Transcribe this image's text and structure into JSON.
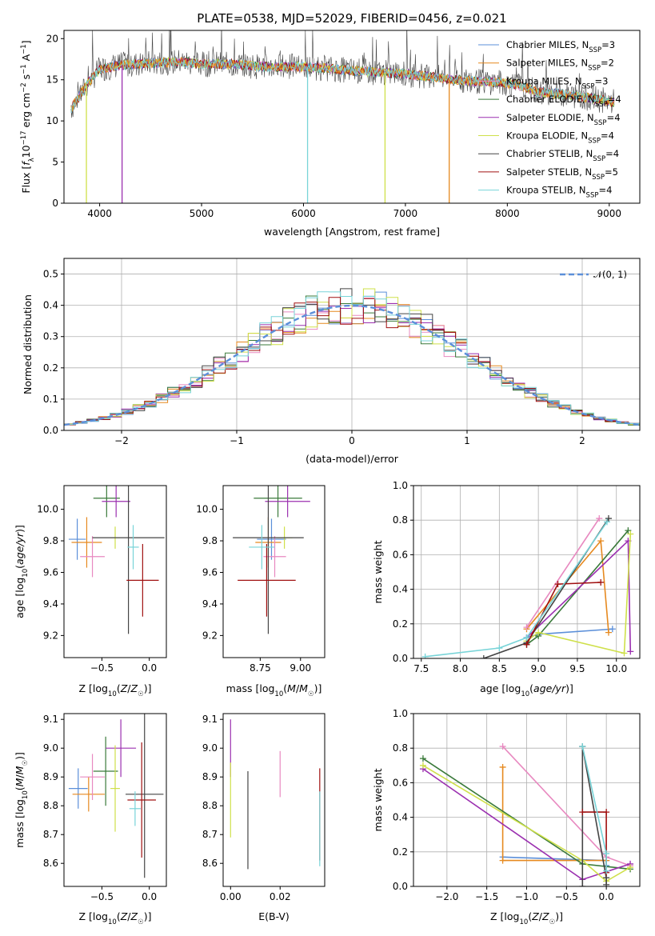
{
  "chart_data": [
    {
      "id": "spectrum",
      "type": "line",
      "title": "PLATE=0538, MJD=52029, FIBERID=0456, z=0.021",
      "xlabel": "wavelength [Angstrom, rest frame]",
      "ylabel": "Flux [f_λ 10^-17 erg cm^-2 s^-1 A^-1]",
      "xlim": [
        3650,
        9300
      ],
      "ylim": [
        0,
        21
      ],
      "xticks": [
        4000,
        5000,
        6000,
        7000,
        8000,
        9000
      ],
      "yticks": [
        0,
        5,
        10,
        15,
        20
      ],
      "grid": false,
      "legend_position": "top-right",
      "continuum": {
        "x": [
          3720,
          3800,
          3900,
          4000,
          4200,
          4500,
          4800,
          5000,
          5300,
          5600,
          6000,
          6300,
          6600,
          7000,
          7300,
          7500,
          7700,
          7900,
          8100,
          8300,
          8500,
          8700,
          8900,
          9050
        ],
        "y": [
          11.5,
          13,
          14.8,
          16.3,
          16.8,
          17.0,
          17.2,
          16.9,
          16.9,
          16.6,
          16.6,
          16.3,
          16.0,
          15.7,
          15.3,
          15.0,
          14.8,
          14.7,
          14.4,
          13.5,
          13.3,
          13.0,
          12.6,
          12.3
        ]
      },
      "dropouts": [
        {
          "x": 3870,
          "y": 0,
          "series": "Kroupa ELODIE"
        },
        {
          "x": 4220,
          "y": 0,
          "series": "Salpeter ELODIE"
        },
        {
          "x": 6040,
          "y": 0,
          "series": "Kroupa STELIB"
        },
        {
          "x": 6800,
          "y": 0,
          "series": "Kroupa ELODIE"
        },
        {
          "x": 7430,
          "y": 0,
          "series": "Salpeter MILES"
        }
      ],
      "series": [
        {
          "name": "Chabrier MILES",
          "nssp": "3",
          "color": "#5b8fd9"
        },
        {
          "name": "Salpeter MILES",
          "nssp": "2",
          "color": "#e6891f"
        },
        {
          "name": "Kroupa MILES",
          "nssp": "3",
          "color": "#e889c0"
        },
        {
          "name": "Chabrier ELODIE",
          "nssp": "4",
          "color": "#3a7a3a"
        },
        {
          "name": "Salpeter ELODIE",
          "nssp": "4",
          "color": "#9b30b0"
        },
        {
          "name": "Kroupa ELODIE",
          "nssp": "4",
          "color": "#cfe04a"
        },
        {
          "name": "Chabrier STELIB",
          "nssp": "4",
          "color": "#444444"
        },
        {
          "name": "Salpeter STELIB",
          "nssp": "5",
          "color": "#a01010"
        },
        {
          "name": "Kroupa STELIB",
          "nssp": "4",
          "color": "#78d4d8"
        }
      ]
    },
    {
      "id": "residuals",
      "type": "line",
      "xlabel": "(data-model)/error",
      "ylabel": "Normed distribution",
      "xlim": [
        -2.5,
        2.5
      ],
      "ylim": [
        0,
        0.55
      ],
      "xticks": [
        -2,
        -1,
        0,
        1,
        2
      ],
      "yticks": [
        0.0,
        0.1,
        0.2,
        0.3,
        0.4,
        0.5
      ],
      "grid": true,
      "legend": "𝒩(0, 1)",
      "legend_position": "top-right",
      "reference_curve": "gaussian mean 0 sigma 1",
      "bin_width": 0.1
    },
    {
      "id": "age-vs-Z",
      "type": "scatter",
      "xlabel": "Z [log10(Z/Z☉)]",
      "ylabel": "age  [log10(age/yr)]",
      "xlim": [
        -0.9,
        0.18
      ],
      "ylim": [
        9.06,
        10.15
      ],
      "xticks": [
        -0.5,
        0.0
      ],
      "yticks": [
        9.2,
        9.4,
        9.6,
        9.8,
        10.0
      ],
      "grid": false,
      "points": [
        {
          "series": "Chabrier MILES",
          "x": -0.76,
          "y": 9.81,
          "xerr": 0.09,
          "yerr": 0.13
        },
        {
          "series": "Salpeter MILES",
          "x": -0.66,
          "y": 9.79,
          "xerr": 0.16,
          "yerr": 0.16
        },
        {
          "series": "Kroupa MILES",
          "x": -0.6,
          "y": 9.7,
          "xerr": 0.13,
          "yerr": 0.13
        },
        {
          "series": "Chabrier ELODIE",
          "x": -0.45,
          "y": 10.07,
          "xerr": 0.14,
          "yerr": 0.12
        },
        {
          "series": "Salpeter ELODIE",
          "x": -0.35,
          "y": 10.05,
          "xerr": 0.15,
          "yerr": 0.1
        },
        {
          "series": "Kroupa ELODIE",
          "x": -0.36,
          "y": 9.82,
          "xerr": 0.05,
          "yerr": 0.07
        },
        {
          "series": "Chabrier STELIB",
          "x": -0.22,
          "y": 9.82,
          "xerr": 0.38,
          "yerr": 0.61
        },
        {
          "series": "Salpeter STELIB",
          "x": -0.07,
          "y": 9.55,
          "xerr": 0.17,
          "yerr": 0.23
        },
        {
          "series": "Kroupa STELIB",
          "x": -0.17,
          "y": 9.76,
          "xerr": 0.06,
          "yerr": 0.14
        }
      ]
    },
    {
      "id": "age-vs-mass",
      "type": "scatter",
      "xlabel": "mass [log10(M/M☉)]",
      "ylabel": "",
      "xlim": [
        8.52,
        9.15
      ],
      "ylim": [
        9.06,
        10.15
      ],
      "xticks": [
        8.75,
        9.0
      ],
      "yticks": [
        9.2,
        9.4,
        9.6,
        9.8,
        10.0
      ],
      "grid": false,
      "points": [
        {
          "series": "Chabrier MILES",
          "x": 8.82,
          "y": 9.81,
          "xerr": 0.09,
          "yerr": 0.13
        },
        {
          "series": "Salpeter MILES",
          "x": 8.8,
          "y": 9.79,
          "xerr": 0.08,
          "yerr": 0.16
        },
        {
          "series": "Kroupa MILES",
          "x": 8.84,
          "y": 9.7,
          "xerr": 0.07,
          "yerr": 0.13
        },
        {
          "series": "Chabrier ELODIE",
          "x": 8.86,
          "y": 10.07,
          "xerr": 0.15,
          "yerr": 0.12
        },
        {
          "series": "Salpeter ELODIE",
          "x": 8.92,
          "y": 10.05,
          "xerr": 0.14,
          "yerr": 0.1
        },
        {
          "series": "Kroupa ELODIE",
          "x": 8.9,
          "y": 9.82,
          "xerr": 0.05,
          "yerr": 0.07
        },
        {
          "series": "Chabrier STELIB",
          "x": 8.8,
          "y": 9.82,
          "xerr": 0.22,
          "yerr": 0.61
        },
        {
          "series": "Salpeter STELIB",
          "x": 8.79,
          "y": 9.55,
          "xerr": 0.18,
          "yerr": 0.23
        },
        {
          "series": "Kroupa STELIB",
          "x": 8.76,
          "y": 9.76,
          "xerr": 0.08,
          "yerr": 0.14
        }
      ]
    },
    {
      "id": "weight-vs-age",
      "type": "line",
      "xlabel": "age  [log10(age/yr)]",
      "ylabel": "mass weight",
      "xlim": [
        7.4,
        10.3
      ],
      "ylim": [
        0,
        1
      ],
      "xticks": [
        7.5,
        8.0,
        8.5,
        9.0,
        9.5,
        10.0
      ],
      "yticks": [
        0.0,
        0.2,
        0.4,
        0.6,
        0.8,
        1.0
      ],
      "grid": true,
      "series": [
        {
          "name": "Chabrier MILES",
          "x": [
            8.85,
            9.0,
            9.95
          ],
          "y": [
            0.12,
            0.14,
            0.17
          ]
        },
        {
          "name": "Salpeter MILES",
          "x": [
            8.85,
            9.8,
            9.9
          ],
          "y": [
            0.17,
            0.68,
            0.15
          ]
        },
        {
          "name": "Kroupa MILES",
          "x": [
            8.85,
            9.78
          ],
          "y": [
            0.18,
            0.81
          ]
        },
        {
          "name": "Chabrier ELODIE",
          "x": [
            8.85,
            9.0,
            10.15
          ],
          "y": [
            0.08,
            0.13,
            0.74
          ]
        },
        {
          "name": "Salpeter ELODIE",
          "x": [
            8.85,
            10.15,
            10.18
          ],
          "y": [
            0.12,
            0.68,
            0.04
          ]
        },
        {
          "name": "Kroupa ELODIE",
          "x": [
            8.85,
            9.0,
            10.1,
            10.18
          ],
          "y": [
            0.1,
            0.15,
            0.03,
            0.72
          ]
        },
        {
          "name": "Chabrier STELIB",
          "x": [
            8.3,
            8.85,
            9.9
          ],
          "y": [
            0.0,
            0.09,
            0.81
          ]
        },
        {
          "name": "Salpeter STELIB",
          "x": [
            8.85,
            9.25,
            9.8
          ],
          "y": [
            0.08,
            0.43,
            0.44
          ]
        },
        {
          "name": "Kroupa STELIB",
          "x": [
            7.55,
            8.5,
            8.85,
            9.88
          ],
          "y": [
            0.01,
            0.06,
            0.12,
            0.79
          ]
        }
      ]
    },
    {
      "id": "mass-vs-Z",
      "type": "scatter",
      "xlabel": "Z [log10(Z/Z☉)]",
      "ylabel": "mass [log10(M/M☉)]",
      "xlim": [
        -0.9,
        0.18
      ],
      "ylim": [
        8.52,
        9.12
      ],
      "xticks": [
        -0.5,
        0.0
      ],
      "yticks": [
        8.6,
        8.7,
        8.8,
        8.9,
        9.0,
        9.1
      ],
      "grid": false,
      "points": [
        {
          "series": "Chabrier MILES",
          "x": -0.75,
          "y": 8.86,
          "xerr": 0.1,
          "yerr": 0.07
        },
        {
          "series": "Salpeter MILES",
          "x": -0.64,
          "y": 8.84,
          "xerr": 0.17,
          "yerr": 0.06
        },
        {
          "series": "Kroupa MILES",
          "x": -0.6,
          "y": 8.9,
          "xerr": 0.13,
          "yerr": 0.08
        },
        {
          "series": "Chabrier ELODIE",
          "x": -0.46,
          "y": 8.92,
          "xerr": 0.13,
          "yerr": 0.12
        },
        {
          "series": "Salpeter ELODIE",
          "x": -0.3,
          "y": 9.0,
          "xerr": 0.16,
          "yerr": 0.1
        },
        {
          "series": "Kroupa ELODIE",
          "x": -0.36,
          "y": 8.86,
          "xerr": 0.05,
          "yerr": 0.15
        },
        {
          "series": "Chabrier STELIB",
          "x": -0.05,
          "y": 8.84,
          "xerr": 0.2,
          "yerr": 0.29
        },
        {
          "series": "Salpeter STELIB",
          "x": -0.08,
          "y": 8.82,
          "xerr": 0.15,
          "yerr": 0.2
        },
        {
          "series": "Kroupa STELIB",
          "x": -0.15,
          "y": 8.79,
          "xerr": 0.06,
          "yerr": 0.06
        }
      ]
    },
    {
      "id": "mass-vs-ebv",
      "type": "scatter",
      "xlabel": "E(B-V)",
      "ylabel": "",
      "xlim": [
        -0.003,
        0.038
      ],
      "ylim": [
        8.52,
        9.12
      ],
      "xticks": [
        0.0,
        0.02
      ],
      "xtick_labels": [
        "0.00",
        "0.02"
      ],
      "yticks": [
        8.6,
        8.7,
        8.8,
        8.9,
        9.0,
        9.1
      ],
      "grid": false,
      "points": [
        {
          "series": "Salpeter ELODIE",
          "x": 0.0,
          "y": 9.0,
          "yerr": 0.1
        },
        {
          "series": "Kroupa ELODIE",
          "x": 0.0,
          "y": 8.82,
          "yerr": 0.13
        },
        {
          "series": "Chabrier STELIB",
          "x": 0.007,
          "y": 8.75,
          "yerr": 0.17
        },
        {
          "series": "Kroupa MILES",
          "x": 0.02,
          "y": 8.91,
          "yerr": 0.08
        },
        {
          "series": "Salpeter STELIB",
          "x": 0.036,
          "y": 8.77,
          "yerr": 0.16
        },
        {
          "series": "Kroupa STELIB",
          "x": 0.036,
          "y": 8.72,
          "yerr": 0.13
        }
      ]
    },
    {
      "id": "weight-vs-Z",
      "type": "line",
      "xlabel": "Z [log10(Z/Z☉)]",
      "ylabel": "mass weight",
      "xlim": [
        -2.42,
        0.42
      ],
      "ylim": [
        0,
        1
      ],
      "xticks": [
        -2.0,
        -1.5,
        -1.0,
        -0.5,
        0.0
      ],
      "yticks": [
        0.0,
        0.2,
        0.4,
        0.6,
        0.8,
        1.0
      ],
      "grid": true,
      "series": [
        {
          "name": "Chabrier MILES",
          "x": [
            -1.3,
            0.0,
            0.0
          ],
          "y": [
            0.17,
            0.15,
            0.12
          ]
        },
        {
          "name": "Salpeter MILES",
          "x": [
            -1.3,
            -1.3,
            0.0
          ],
          "y": [
            0.69,
            0.15,
            0.15
          ]
        },
        {
          "name": "Kroupa MILES",
          "x": [
            -1.3,
            0.0,
            0.3
          ],
          "y": [
            0.81,
            0.17,
            0.12
          ]
        },
        {
          "name": "Chabrier ELODIE",
          "x": [
            -2.3,
            -0.3,
            0.3
          ],
          "y": [
            0.74,
            0.13,
            0.1
          ]
        },
        {
          "name": "Salpeter ELODIE",
          "x": [
            -2.3,
            -0.3,
            0.3
          ],
          "y": [
            0.68,
            0.04,
            0.13
          ]
        },
        {
          "name": "Kroupa ELODIE",
          "x": [
            -2.3,
            -0.3,
            0.0,
            0.3
          ],
          "y": [
            0.7,
            0.15,
            0.03,
            0.11
          ]
        },
        {
          "name": "Chabrier STELIB",
          "x": [
            -0.3,
            -0.3,
            0.0,
            0.0
          ],
          "y": [
            0.0,
            0.81,
            0.05,
            0.01
          ]
        },
        {
          "name": "Salpeter STELIB",
          "x": [
            -0.3,
            0.0,
            0.0
          ],
          "y": [
            0.43,
            0.43,
            0.08
          ]
        },
        {
          "name": "Kroupa STELIB",
          "x": [
            -0.3,
            0.0,
            0.0
          ],
          "y": [
            0.81,
            0.19,
            0.09
          ]
        }
      ]
    }
  ]
}
